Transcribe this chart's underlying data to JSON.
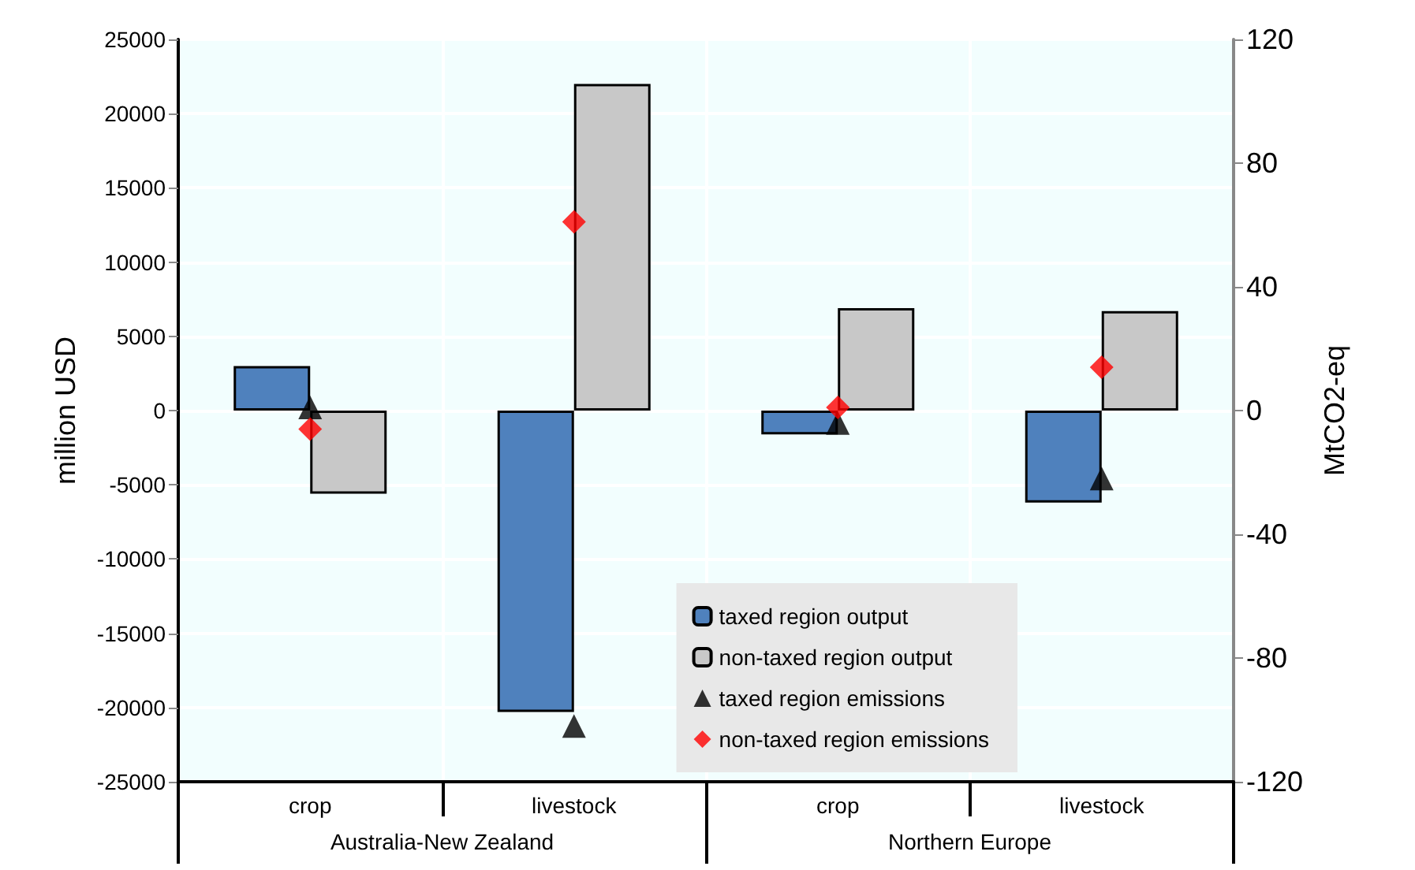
{
  "chart_data": {
    "type": "bar",
    "ylabel": "million USD",
    "y2label": "MtCO2-eq",
    "categories": [
      "crop",
      "livestock",
      "crop",
      "livestock"
    ],
    "annotations": [
      "Australia-New Zealand",
      "Northern Europe"
    ],
    "series": [
      {
        "name": "taxed region output",
        "color": "#4f81bd",
        "values": [
          3000,
          -20300,
          -1600,
          -6200
        ]
      },
      {
        "name": "non-taxed region output",
        "color": "#c8c8c8",
        "values": [
          -5600,
          22000,
          6900,
          6700
        ]
      },
      {
        "name": "taxed region emissions",
        "type": "scatter",
        "marker": "triangle",
        "axis": "y2",
        "color": "#000000",
        "values": [
          1,
          -102,
          -4,
          -22
        ]
      },
      {
        "name": "non-taxed region emissions",
        "type": "scatter",
        "marker": "diamond",
        "axis": "y2",
        "color": "#ff0000",
        "values": [
          -6,
          61,
          1,
          14
        ]
      }
    ],
    "ylim": [
      -25000,
      25000
    ],
    "yticks": [
      -25000,
      -20000,
      -15000,
      -10000,
      -5000,
      0,
      5000,
      10000,
      15000,
      20000,
      25000
    ],
    "y2lim": [
      -120,
      120
    ],
    "y2ticks": [
      -120,
      -80,
      -40,
      0,
      40,
      80,
      120
    ],
    "grid": true,
    "legend": "bottom right"
  }
}
